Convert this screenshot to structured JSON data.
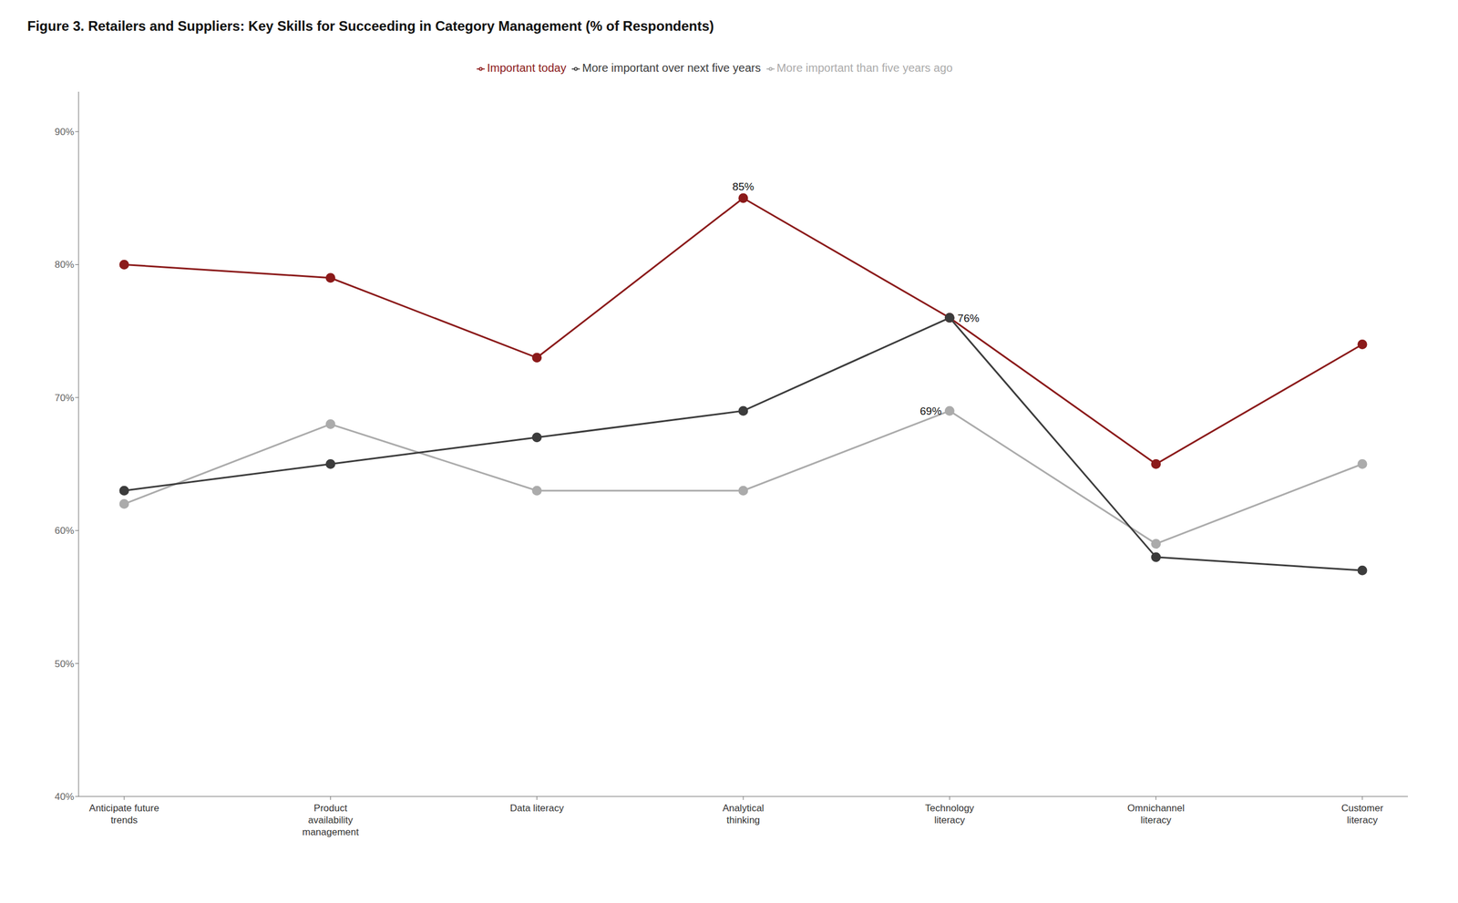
{
  "chart_data": {
    "type": "line",
    "title": "Figure 3. Retailers and Suppliers: Key Skills for Succeeding in Category Management (% of Respondents)",
    "categories": [
      "Anticipate future\ntrends",
      "Product\navailability\nmanagement",
      "Data literacy",
      "Analytical\nthinking",
      "Technology\nliteracy",
      "Omnichannel\nliteracy",
      "Customer\nliteracy"
    ],
    "series": [
      {
        "name": "Important today",
        "color": "#8B1A1A",
        "values": [
          80,
          79,
          73,
          85,
          76,
          65,
          74
        ],
        "marker": "circle"
      },
      {
        "name": "More important than five years ago",
        "color": "#ABABAB",
        "values": [
          62,
          68,
          63,
          63,
          69,
          59,
          65
        ],
        "marker": "circle"
      },
      {
        "name": "More important over next five years",
        "color": "#3C3C3C",
        "values": [
          63,
          65,
          67,
          69,
          76,
          58,
          57
        ],
        "marker": "circle"
      }
    ],
    "annotations": [
      {
        "text": "85%",
        "series": "Important today",
        "category": "Analytical\nthinking",
        "position": "top"
      },
      {
        "text": "76%",
        "series": "More important over next five years",
        "category": "Technology\nliteracy",
        "position": "right"
      },
      {
        "text": "69%",
        "series": "More important than five years ago",
        "category": "Technology\nliteracy",
        "position": "left"
      }
    ],
    "ylim": [
      40,
      93
    ],
    "yticks": [
      {
        "value": 40,
        "label": "40%"
      },
      {
        "value": 50,
        "label": "50%"
      },
      {
        "value": 60,
        "label": "60%"
      },
      {
        "value": 70,
        "label": "70%"
      },
      {
        "value": 80,
        "label": "80%"
      },
      {
        "value": 90,
        "label": "90%"
      }
    ],
    "grid": false,
    "legend": "top"
  }
}
